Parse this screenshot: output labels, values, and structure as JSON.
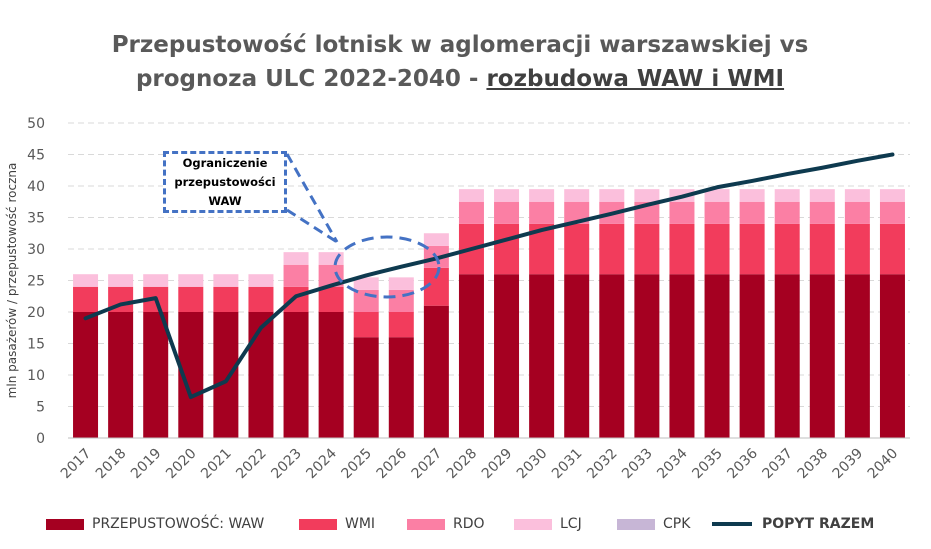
{
  "title": {
    "line1": "Przepustowość lotnisk w aglomeracji warszawskiej vs",
    "line2_prefix": "prognoza ULC 2022-2040 - ",
    "line2_underlined": "rozbudowa WAW i WMI"
  },
  "callout": {
    "line1": "Ograniczenie",
    "line2": "przepustowości",
    "line3": "WAW"
  },
  "legend": {
    "waw": "PRZEPUSTOWOŚĆ: WAW",
    "wmi": "WMI",
    "rdo": "RDO",
    "lcj": "LCJ",
    "cpk": "CPK",
    "popyt": "POPYT RAZEM"
  },
  "colors": {
    "waw": "#a50021",
    "wmi": "#f23c5c",
    "rdo": "#fb7fa4",
    "lcj": "#fbbfdc",
    "cpk": "#c7b6d6",
    "popyt": "#0e3a4f",
    "callout": "#4472c4"
  },
  "chart_data": {
    "type": "bar",
    "stacked": true,
    "categories": [
      "2017",
      "2018",
      "2019",
      "2020",
      "2021",
      "2022",
      "2023",
      "2024",
      "2025",
      "2026",
      "2027",
      "2028",
      "2029",
      "2030",
      "2031",
      "2032",
      "2033",
      "2034",
      "2035",
      "2036",
      "2037",
      "2038",
      "2039",
      "2040"
    ],
    "series": [
      {
        "name": "PRZEPUSTOWOŚĆ: WAW",
        "key": "waw",
        "values": [
          20,
          20,
          20,
          20,
          20,
          20,
          20,
          20,
          16,
          16,
          21,
          26,
          26,
          26,
          26,
          26,
          26,
          26,
          26,
          26,
          26,
          26,
          26,
          26
        ]
      },
      {
        "name": "WMI",
        "key": "wmi",
        "values": [
          4,
          4,
          4,
          4,
          4,
          4,
          4,
          4,
          4,
          4,
          6,
          8,
          8,
          8,
          8,
          8,
          8,
          8,
          8,
          8,
          8,
          8,
          8,
          8
        ]
      },
      {
        "name": "RDO",
        "key": "rdo",
        "values": [
          0,
          0,
          0,
          0,
          0,
          0,
          3.5,
          3.5,
          3.5,
          3.5,
          3.5,
          3.5,
          3.5,
          3.5,
          3.5,
          3.5,
          3.5,
          3.5,
          3.5,
          3.5,
          3.5,
          3.5,
          3.5,
          3.5
        ]
      },
      {
        "name": "LCJ",
        "key": "lcj",
        "values": [
          2,
          2,
          2,
          2,
          2,
          2,
          2,
          2,
          2,
          2,
          2,
          2,
          2,
          2,
          2,
          2,
          2,
          2,
          2,
          2,
          2,
          2,
          2,
          2
        ]
      },
      {
        "name": "CPK",
        "key": "cpk",
        "values": [
          0,
          0,
          0,
          0,
          0,
          0,
          0,
          0,
          0,
          0,
          0,
          0,
          0,
          0,
          0,
          0,
          0,
          0,
          0,
          0,
          0,
          0,
          0,
          0
        ]
      }
    ],
    "line": {
      "name": "POPYT RAZEM",
      "key": "popyt",
      "values": [
        19,
        21.2,
        22.2,
        6.5,
        9,
        17.5,
        22.5,
        24.2,
        25.8,
        27.2,
        28.5,
        30,
        31.5,
        33,
        34.3,
        35.6,
        37,
        38.3,
        39.8,
        40.8,
        41.9,
        42.9,
        44,
        45
      ]
    },
    "ylabel": "mln pasażerów / przepustowość roczna",
    "xlabel": "",
    "ylim": [
      0,
      50
    ],
    "yticks": [
      0,
      5,
      10,
      15,
      20,
      25,
      30,
      35,
      40,
      45,
      50
    ],
    "grid": true,
    "legend_position": "bottom"
  }
}
